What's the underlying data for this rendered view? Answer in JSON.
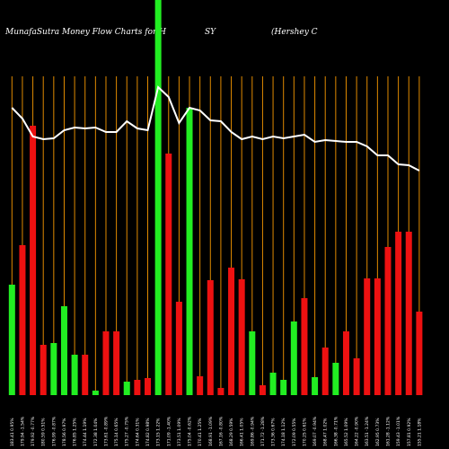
{
  "chart_data": {
    "type": "bar",
    "title": [
      "MunafaSutra  Money Flow  Charts for H",
      "SY",
      "(Hershey C"
    ],
    "categories": [
      "183.41 0.95%",
      "179.94 -1.54%",
      "179.92 -0.77%",
      "180.59 0.51%",
      "176.99 -0.87%",
      "178.56 0.97%",
      "176.85 1.25%",
      "174.44 1.19%",
      "172.38 1.04%",
      "173.61 -0.89%",
      "175.14 0.65%",
      "175.27 -0.75%",
      "174.64 0.31%",
      "174.82 0.98%",
      "173.15 1.22%",
      "171.09 -1.40%",
      "173.51 1.09%",
      "175.04 -0.62%",
      "170.41 1.25%",
      "168.91 -1.09%",
      "167.16 -0.80%",
      "168.29 0.59%",
      "166.41 1.05%",
      "169.86 -0.94%",
      "171.72 -1.28%",
      "173.36 0.67%",
      "174.18 1.12%",
      "172.09 0.55%",
      "170.25 0.61%",
      "169.07 -0.94%",
      "168.47 1.02%",
      "166.38 -0.71%",
      "165.52 1.09%",
      "164.22 -0.90%",
      "163.51 -1.24%",
      "162.95 0.73%",
      "161.28 -1.12%",
      "159.43 -1.01%",
      "157.81 0.92%",
      "155.21 1.18%"
    ],
    "values": [
      123,
      167,
      300,
      56,
      58,
      99,
      45,
      45,
      5,
      71,
      71,
      15,
      17,
      19,
      440,
      269,
      104,
      320,
      21,
      128,
      8,
      142,
      129,
      71,
      11,
      25,
      17,
      82,
      108,
      20,
      53,
      36,
      71,
      41,
      130,
      130,
      165,
      182,
      182,
      93
    ],
    "bar_colors": [
      "#22ee22",
      "#ee1111",
      "#ee1111",
      "#ee1111",
      "#22ee22",
      "#22ee22",
      "#22ee22",
      "#ee1111",
      "#22ee22",
      "#ee1111",
      "#ee1111",
      "#22ee22",
      "#ee1111",
      "#ee1111",
      "#22ee22",
      "#ee1111",
      "#ee1111",
      "#22ee22",
      "#ee1111",
      "#ee1111",
      "#ee1111",
      "#ee1111",
      "#ee1111",
      "#22ee22",
      "#ee1111",
      "#22ee22",
      "#22ee22",
      "#22ee22",
      "#ee1111",
      "#22ee22",
      "#ee1111",
      "#22ee22",
      "#ee1111",
      "#ee1111",
      "#ee1111",
      "#ee1111",
      "#ee1111",
      "#ee1111",
      "#ee1111",
      "#ee1111"
    ],
    "line": {
      "color": "#ffffff",
      "values": [
        320,
        308,
        288,
        285,
        286,
        295,
        298,
        297,
        298,
        293,
        293,
        305,
        297,
        295,
        343,
        332,
        303,
        320,
        317,
        306,
        305,
        293,
        285,
        288,
        285,
        288,
        286,
        288,
        290,
        282,
        284,
        283,
        282,
        282,
        277,
        267,
        267,
        257,
        256,
        250
      ]
    },
    "ylim": [
      0,
      440
    ],
    "gridline_color": "#e08a00"
  }
}
